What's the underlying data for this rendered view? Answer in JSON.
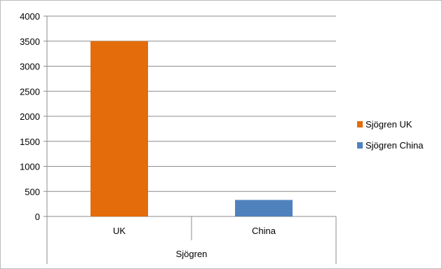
{
  "chart_data": {
    "type": "bar",
    "categories": [
      "UK",
      "China"
    ],
    "group_label": "Sjögren",
    "ylim": [
      0,
      4000
    ],
    "yticks": [
      0,
      500,
      1000,
      1500,
      2000,
      2500,
      3000,
      3500,
      4000
    ],
    "series": [
      {
        "name": "Sjögren UK",
        "category": "UK",
        "value": 3500,
        "color": "#E46C0A"
      },
      {
        "name": "Sjögren China",
        "category": "China",
        "value": 330,
        "color": "#4F81BD"
      }
    ],
    "legend_position": "right",
    "grid": true
  }
}
